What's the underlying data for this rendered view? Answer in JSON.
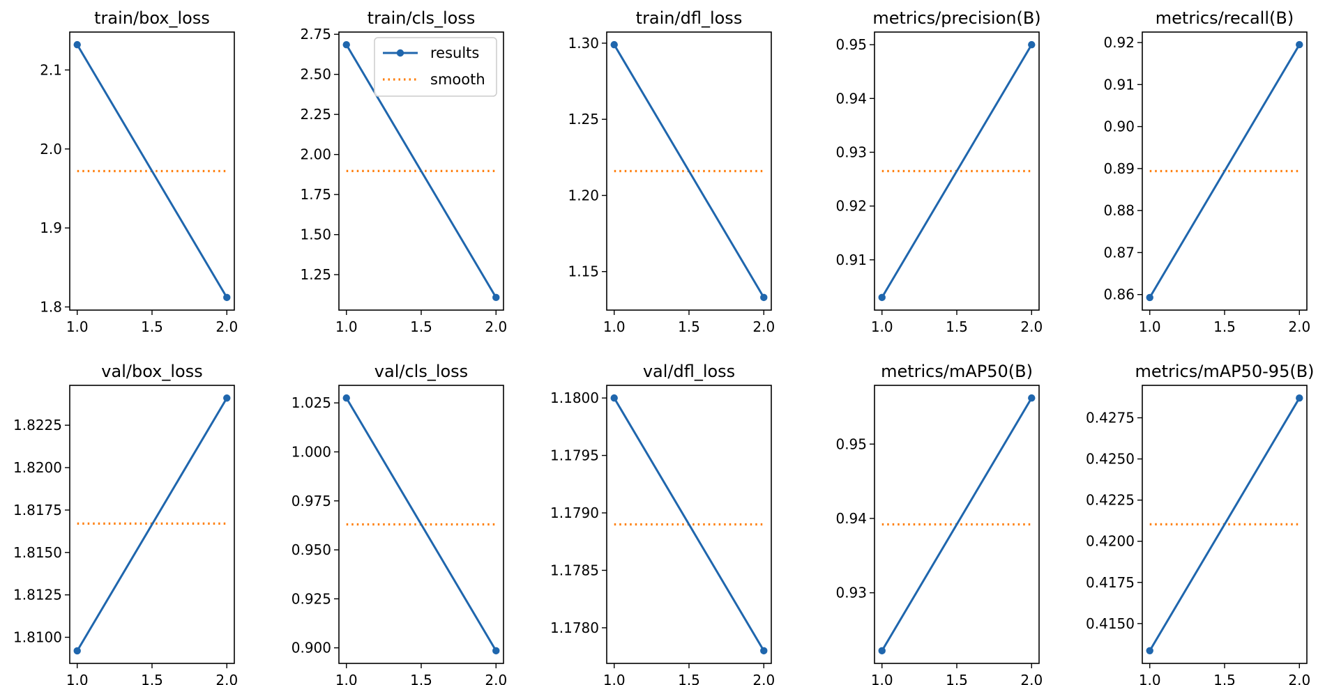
{
  "colors": {
    "results": "#1f66ad",
    "smooth": "#ff7f0e"
  },
  "legend": {
    "results_label": "results",
    "smooth_label": "smooth"
  },
  "chart_data": [
    {
      "type": "line",
      "title": "train/box_loss",
      "x": [
        1.0,
        2.0
      ],
      "xlim": [
        0.95,
        2.05
      ],
      "xticks": [
        "1.0",
        "1.5",
        "2.0"
      ],
      "series": [
        {
          "name": "results",
          "values": [
            2.132,
            1.812
          ]
        },
        {
          "name": "smooth",
          "values": [
            1.972,
            1.972
          ]
        }
      ],
      "ylim": [
        1.796,
        2.148
      ],
      "yticks": [
        "1.8",
        "1.9",
        "2.0",
        "2.1"
      ]
    },
    {
      "type": "line",
      "title": "train/cls_loss",
      "x": [
        1.0,
        2.0
      ],
      "xlim": [
        0.95,
        2.05
      ],
      "xticks": [
        "1.0",
        "1.5",
        "2.0"
      ],
      "series": [
        {
          "name": "results",
          "values": [
            2.685,
            1.108
          ]
        },
        {
          "name": "smooth",
          "values": [
            1.897,
            1.897
          ]
        }
      ],
      "ylim": [
        1.029,
        2.764
      ],
      "yticks": [
        "1.25",
        "1.50",
        "1.75",
        "2.00",
        "2.25",
        "2.50",
        "2.75"
      ],
      "legend": "upper right"
    },
    {
      "type": "line",
      "title": "train/dfl_loss",
      "x": [
        1.0,
        2.0
      ],
      "xlim": [
        0.95,
        2.05
      ],
      "xticks": [
        "1.0",
        "1.5",
        "2.0"
      ],
      "series": [
        {
          "name": "results",
          "values": [
            1.299,
            1.133
          ]
        },
        {
          "name": "smooth",
          "values": [
            1.216,
            1.216
          ]
        }
      ],
      "ylim": [
        1.1247,
        1.3073
      ],
      "yticks": [
        "1.15",
        "1.20",
        "1.25",
        "1.30"
      ]
    },
    {
      "type": "line",
      "title": "metrics/precision(B)",
      "x": [
        1.0,
        2.0
      ],
      "xlim": [
        0.95,
        2.05
      ],
      "xticks": [
        "1.0",
        "1.5",
        "2.0"
      ],
      "series": [
        {
          "name": "results",
          "values": [
            0.903,
            0.95
          ]
        },
        {
          "name": "smooth",
          "values": [
            0.9265,
            0.9265
          ]
        }
      ],
      "ylim": [
        0.90065,
        0.95235
      ],
      "yticks": [
        "0.91",
        "0.92",
        "0.93",
        "0.94",
        "0.95"
      ]
    },
    {
      "type": "line",
      "title": "metrics/recall(B)",
      "x": [
        1.0,
        2.0
      ],
      "xlim": [
        0.95,
        2.05
      ],
      "xticks": [
        "1.0",
        "1.5",
        "2.0"
      ],
      "series": [
        {
          "name": "results",
          "values": [
            0.8593,
            0.9195
          ]
        },
        {
          "name": "smooth",
          "values": [
            0.8894,
            0.8894
          ]
        }
      ],
      "ylim": [
        0.8563,
        0.9225
      ],
      "yticks": [
        "0.86",
        "0.87",
        "0.88",
        "0.89",
        "0.90",
        "0.91",
        "0.92"
      ]
    },
    {
      "type": "line",
      "title": "val/box_loss",
      "x": [
        1.0,
        2.0
      ],
      "xlim": [
        0.95,
        2.05
      ],
      "xticks": [
        "1.0",
        "1.5",
        "2.0"
      ],
      "series": [
        {
          "name": "results",
          "values": [
            1.8092,
            1.8241
          ]
        },
        {
          "name": "smooth",
          "values": [
            1.8167,
            1.8167
          ]
        }
      ],
      "ylim": [
        1.80846,
        1.82485
      ],
      "yticks": [
        "1.8100",
        "1.8125",
        "1.8150",
        "1.8175",
        "1.8200",
        "1.8225"
      ]
    },
    {
      "type": "line",
      "title": "val/cls_loss",
      "x": [
        1.0,
        2.0
      ],
      "xlim": [
        0.95,
        2.05
      ],
      "xticks": [
        "1.0",
        "1.5",
        "2.0"
      ],
      "series": [
        {
          "name": "results",
          "values": [
            1.0275,
            0.8985
          ]
        },
        {
          "name": "smooth",
          "values": [
            0.963,
            0.963
          ]
        }
      ],
      "ylim": [
        0.89205,
        1.03395
      ],
      "yticks": [
        "0.900",
        "0.925",
        "0.950",
        "0.975",
        "1.000",
        "1.025"
      ]
    },
    {
      "type": "line",
      "title": "val/dfl_loss",
      "x": [
        1.0,
        2.0
      ],
      "xlim": [
        0.95,
        2.05
      ],
      "xticks": [
        "1.0",
        "1.5",
        "2.0"
      ],
      "series": [
        {
          "name": "results",
          "values": [
            1.18,
            1.1778
          ]
        },
        {
          "name": "smooth",
          "values": [
            1.1789,
            1.1789
          ]
        }
      ],
      "ylim": [
        1.17769,
        1.18011
      ],
      "yticks": [
        "1.1780",
        "1.1785",
        "1.1790",
        "1.1795",
        "1.1800"
      ]
    },
    {
      "type": "line",
      "title": "metrics/mAP50(B)",
      "x": [
        1.0,
        2.0
      ],
      "xlim": [
        0.95,
        2.05
      ],
      "xticks": [
        "1.0",
        "1.5",
        "2.0"
      ],
      "series": [
        {
          "name": "results",
          "values": [
            0.9222,
            0.9562
          ]
        },
        {
          "name": "smooth",
          "values": [
            0.9392,
            0.9392
          ]
        }
      ],
      "ylim": [
        0.9205,
        0.9579
      ],
      "yticks": [
        "0.93",
        "0.94",
        "0.95"
      ]
    },
    {
      "type": "line",
      "title": "metrics/mAP50-95(B)",
      "x": [
        1.0,
        2.0
      ],
      "xlim": [
        0.95,
        2.05
      ],
      "xticks": [
        "1.0",
        "1.5",
        "2.0"
      ],
      "series": [
        {
          "name": "results",
          "values": [
            0.41335,
            0.4287
          ]
        },
        {
          "name": "smooth",
          "values": [
            0.42103,
            0.42103
          ]
        }
      ],
      "ylim": [
        0.41258,
        0.42947
      ],
      "yticks": [
        "0.4150",
        "0.4175",
        "0.4200",
        "0.4225",
        "0.4250",
        "0.4275"
      ]
    }
  ]
}
